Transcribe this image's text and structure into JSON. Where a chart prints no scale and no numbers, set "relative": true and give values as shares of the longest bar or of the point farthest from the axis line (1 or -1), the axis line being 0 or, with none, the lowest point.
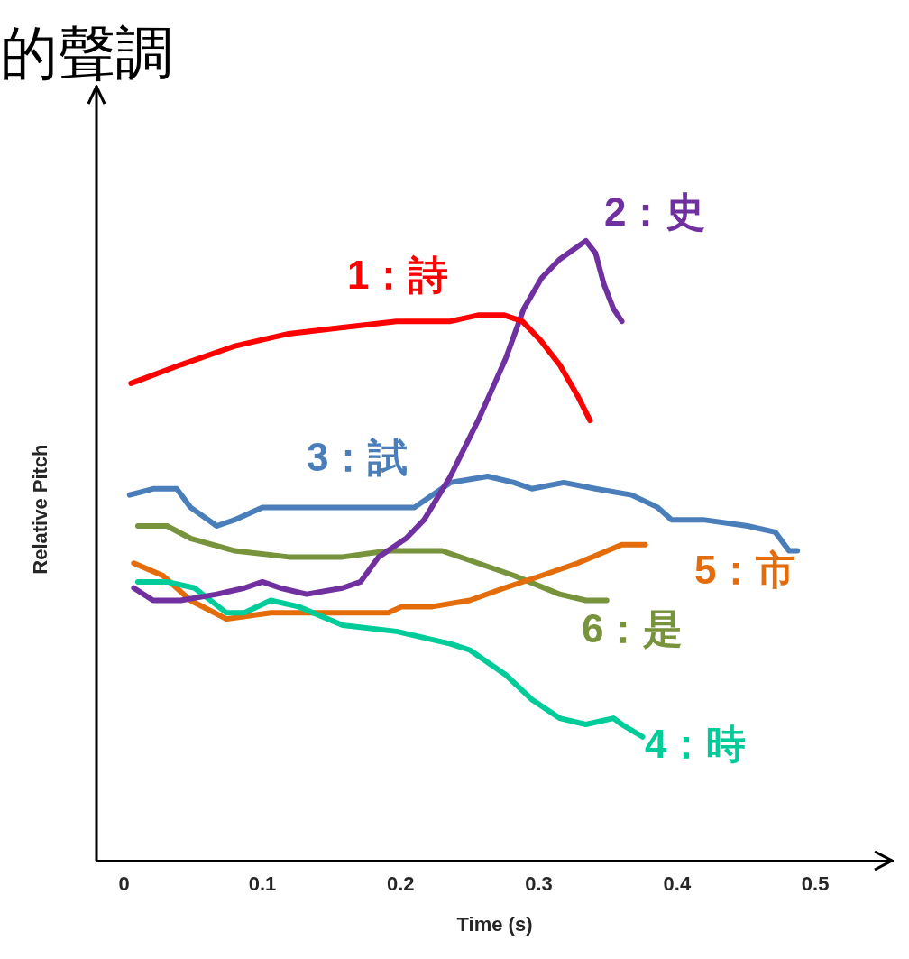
{
  "chart_data": {
    "type": "line",
    "title": "的聲調",
    "xlabel": "Time (s)",
    "ylabel": "Relative Pitch",
    "relative": true,
    "xlim": [
      -0.02,
      0.556
    ],
    "xticks": [
      0,
      0.1,
      0.2,
      0.3,
      0.4,
      0.5
    ],
    "grid": false,
    "legend": false,
    "marker": "none",
    "line_style": "solid",
    "series": [
      {
        "name": "1：詩",
        "color": "#ff0000",
        "x": [
          0.005,
          0.041,
          0.08,
          0.119,
          0.158,
          0.197,
          0.236,
          0.256,
          0.275,
          0.288,
          0.301,
          0.315,
          0.328,
          0.337
        ],
        "values": [
          0.77,
          0.8,
          0.83,
          0.85,
          0.86,
          0.87,
          0.87,
          0.88,
          0.88,
          0.87,
          0.84,
          0.8,
          0.75,
          0.71
        ]
      },
      {
        "name": "2：史",
        "color": "#7030a0",
        "x": [
          0.007,
          0.021,
          0.041,
          0.067,
          0.087,
          0.1,
          0.113,
          0.132,
          0.158,
          0.171,
          0.184,
          0.204,
          0.217,
          0.236,
          0.256,
          0.276,
          0.289,
          0.302,
          0.315,
          0.334,
          0.341,
          0.347,
          0.354,
          0.36
        ],
        "values": [
          0.44,
          0.42,
          0.42,
          0.43,
          0.44,
          0.45,
          0.44,
          0.43,
          0.44,
          0.45,
          0.49,
          0.52,
          0.55,
          0.62,
          0.71,
          0.81,
          0.89,
          0.94,
          0.97,
          1,
          0.98,
          0.93,
          0.89,
          0.87
        ]
      },
      {
        "name": "3：試",
        "color": "#4a7ebb",
        "x": [
          0.004,
          0.021,
          0.038,
          0.048,
          0.067,
          0.08,
          0.1,
          0.132,
          0.171,
          0.21,
          0.223,
          0.236,
          0.263,
          0.282,
          0.295,
          0.318,
          0.341,
          0.367,
          0.386,
          0.396,
          0.419,
          0.451,
          0.471,
          0.481,
          0.487
        ],
        "values": [
          0.59,
          0.6,
          0.6,
          0.57,
          0.54,
          0.55,
          0.57,
          0.57,
          0.57,
          0.57,
          0.59,
          0.61,
          0.62,
          0.61,
          0.6,
          0.61,
          0.6,
          0.59,
          0.57,
          0.55,
          0.55,
          0.54,
          0.53,
          0.5,
          0.5
        ]
      },
      {
        "name": "4：時",
        "color": "#00cc99",
        "x": [
          0.01,
          0.031,
          0.051,
          0.074,
          0.087,
          0.106,
          0.126,
          0.158,
          0.197,
          0.236,
          0.25,
          0.276,
          0.295,
          0.315,
          0.334,
          0.354,
          0.36,
          0.375
        ],
        "values": [
          0.45,
          0.45,
          0.44,
          0.4,
          0.4,
          0.42,
          0.41,
          0.38,
          0.37,
          0.35,
          0.34,
          0.3,
          0.26,
          0.23,
          0.22,
          0.23,
          0.22,
          0.2
        ]
      },
      {
        "name": "5：市",
        "color": "#e46c0a",
        "x": [
          0.007,
          0.028,
          0.048,
          0.074,
          0.106,
          0.139,
          0.171,
          0.191,
          0.201,
          0.223,
          0.25,
          0.275,
          0.302,
          0.328,
          0.36,
          0.377
        ],
        "values": [
          0.48,
          0.46,
          0.42,
          0.39,
          0.4,
          0.4,
          0.4,
          0.4,
          0.41,
          0.41,
          0.42,
          0.44,
          0.46,
          0.48,
          0.51,
          0.51
        ]
      },
      {
        "name": "6：是",
        "color": "#77933c",
        "x": [
          0.01,
          0.031,
          0.048,
          0.08,
          0.119,
          0.158,
          0.191,
          0.21,
          0.23,
          0.256,
          0.282,
          0.315,
          0.334,
          0.349
        ],
        "values": [
          0.54,
          0.54,
          0.52,
          0.5,
          0.49,
          0.49,
          0.5,
          0.5,
          0.5,
          0.48,
          0.46,
          0.43,
          0.42,
          0.42
        ]
      }
    ]
  }
}
